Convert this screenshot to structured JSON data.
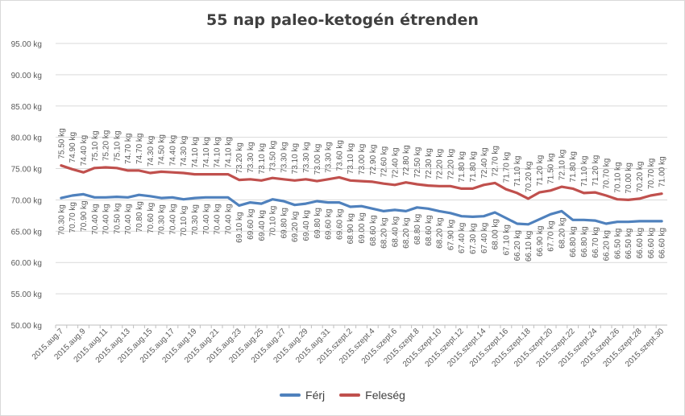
{
  "chart_data": {
    "type": "line",
    "title": "55 nap paleo-ketogén étrenden",
    "ylim": [
      50,
      95
    ],
    "yticks": [
      "50.00 kg",
      "55.00 kg",
      "60.00 kg",
      "65.00 kg",
      "70.00 kg",
      "75.00 kg",
      "80.00 kg",
      "85.00 kg",
      "90.00 kg",
      "95.00 kg"
    ],
    "ytick_values": [
      50,
      55,
      60,
      65,
      70,
      75,
      80,
      85,
      90,
      95
    ],
    "grid": true,
    "legend_position": "bottom",
    "categories": [
      "2015.aug.7",
      "2015.aug.8",
      "2015.aug.9",
      "2015.aug.10",
      "2015.aug.11",
      "2015.aug.12",
      "2015.aug.13",
      "2015.aug.14",
      "2015.aug.15",
      "2015.aug.16",
      "2015.aug.17",
      "2015.aug.18",
      "2015.aug.19",
      "2015.aug.20",
      "2015.aug.21",
      "2015.aug.22",
      "2015.aug.23",
      "2015.aug.24",
      "2015.aug.25",
      "2015.aug.26",
      "2015.aug.27",
      "2015.aug.28",
      "2015.aug.29",
      "2015.aug.30",
      "2015.aug.31",
      "2015.szept.1",
      "2015.szept.2",
      "2015.szept.3",
      "2015.szept.4",
      "2015.szept.5",
      "2015.szept.6",
      "2015.szept.7",
      "2015.szept.8",
      "2015.szept.9",
      "2015.szept.10",
      "2015.szept.11",
      "2015.szept.12",
      "2015.szept.13",
      "2015.szept.14",
      "2015.szept.15",
      "2015.szept.16",
      "2015.szept.17",
      "2015.szept.18",
      "2015.szept.19",
      "2015.szept.20",
      "2015.szept.21",
      "2015.szept.22",
      "2015.szept.23",
      "2015.szept.24",
      "2015.szept.25",
      "2015.szept.26",
      "2015.szept.27",
      "2015.szept.28",
      "2015.szept.29",
      "2015.szept.30"
    ],
    "visible_category_labels": [
      "2015.aug.7",
      "2015.aug.9",
      "2015.aug.11",
      "2015.aug.13",
      "2015.aug.15",
      "2015.aug.17",
      "2015.aug.19",
      "2015.aug.21",
      "2015.aug.23",
      "2015.aug.25",
      "2015.aug.27",
      "2015.aug.29",
      "2015.aug.31",
      "2015.szept.2",
      "2015.szept.4",
      "2015.szept.6",
      "2015.szept.8",
      "2015.szept.10",
      "2015.szept.12",
      "2015.szept.14",
      "2015.szept.16",
      "2015.szept.18",
      "2015.szept.20",
      "2015.szept.22",
      "2015.szept.24",
      "2015.szept.26",
      "2015.szept.28",
      "2015.szept.30"
    ],
    "series": [
      {
        "name": "Férj",
        "color": "#4f81bd",
        "label_position": "below",
        "values": [
          70.3,
          70.7,
          70.9,
          70.4,
          70.4,
          70.5,
          70.4,
          70.8,
          70.6,
          70.3,
          70.4,
          70.1,
          70.3,
          70.4,
          70.4,
          70.4,
          69.1,
          69.6,
          69.4,
          70.1,
          69.8,
          69.2,
          69.4,
          69.8,
          69.6,
          69.6,
          68.9,
          69.0,
          68.6,
          68.2,
          68.4,
          68.2,
          68.8,
          68.6,
          68.2,
          67.9,
          67.4,
          67.3,
          67.4,
          68.0,
          67.1,
          66.2,
          66.1,
          66.9,
          67.7,
          68.2,
          66.8,
          66.8,
          66.7,
          66.2,
          66.5,
          66.5,
          66.6,
          66.6,
          66.6
        ],
        "labels": [
          "70.30 kg",
          "70.70 kg",
          "70.90 kg",
          "70.40 kg",
          "70.40 kg",
          "70.50 kg",
          "70.40 kg",
          "70.80 kg",
          "70.60 kg",
          "70.30 kg",
          "70.40 kg",
          "70.10 kg",
          "70.30 kg",
          "70.40 kg",
          "70.40 kg",
          "70.40 kg",
          "69.10 kg",
          "69.60 kg",
          "69.40 kg",
          "70.10 kg",
          "69.80 kg",
          "69.20 kg",
          "69.40 kg",
          "69.80 kg",
          "69.60 kg",
          "69.60 kg",
          "68.90 kg",
          "69.00 kg",
          "68.60 kg",
          "68.20 kg",
          "68.40 kg",
          "68.20 kg",
          "68.80 kg",
          "68.60 kg",
          "68.20 kg",
          "67.90 kg",
          "67.40 kg",
          "67.30 kg",
          "67.40 kg",
          "68.00 kg",
          "67.10 kg",
          "66.20 kg",
          "66.10 kg",
          "66.90 kg",
          "67.70 kg",
          "68.20 kg",
          "66.80 kg",
          "66.80 kg",
          "66.70 kg",
          "66.20 kg",
          "66.50 kg",
          "66.50 kg",
          "66.60 kg",
          "66.60 kg",
          "66.60 kg"
        ]
      },
      {
        "name": "Feleség",
        "color": "#c0504d",
        "label_position": "above",
        "values": [
          75.5,
          74.9,
          74.4,
          75.1,
          75.2,
          75.1,
          74.7,
          74.7,
          74.3,
          74.5,
          74.4,
          74.3,
          74.1,
          74.1,
          74.1,
          74.1,
          73.2,
          73.3,
          73.1,
          73.5,
          73.3,
          73.1,
          73.3,
          73.0,
          73.3,
          73.6,
          73.1,
          73.0,
          72.9,
          72.6,
          72.4,
          72.8,
          72.5,
          72.3,
          72.2,
          72.2,
          71.8,
          71.8,
          72.4,
          72.7,
          71.7,
          71.1,
          70.2,
          71.2,
          71.5,
          72.1,
          71.8,
          71.1,
          71.2,
          70.7,
          70.1,
          70.0,
          70.2,
          70.7,
          71.0
        ],
        "labels": [
          "75.50 kg",
          "74.90 kg",
          "74.40 kg",
          "75.10 kg",
          "75.20 kg",
          "75.10 kg",
          "74.70 kg",
          "74.70 kg",
          "74.30 kg",
          "74.50 kg",
          "74.40 kg",
          "74.30 kg",
          "74.10 kg",
          "74.10 kg",
          "74.10 kg",
          "74.10 kg",
          "73.20 kg",
          "73.30 kg",
          "73.10 kg",
          "73.50 kg",
          "73.30 kg",
          "73.10 kg",
          "73.30 kg",
          "73.00 kg",
          "73.30 kg",
          "73.60 kg",
          "73.10 kg",
          "73.00 kg",
          "72.90 kg",
          "72.60 kg",
          "72.40 kg",
          "72.80 kg",
          "72.50 kg",
          "72.30 kg",
          "72.20 kg",
          "72.20 kg",
          "71.80 kg",
          "71.80 kg",
          "72.40 kg",
          "72.70 kg",
          "71.70 kg",
          "71.10 kg",
          "70.20 kg",
          "71.20 kg",
          "71.50 kg",
          "72.10 kg",
          "71.80 kg",
          "71.10 kg",
          "71.20 kg",
          "70.70 kg",
          "70.10 kg",
          "70.00 kg",
          "70.20 kg",
          "70.70 kg",
          "71.00 kg"
        ]
      }
    ]
  }
}
